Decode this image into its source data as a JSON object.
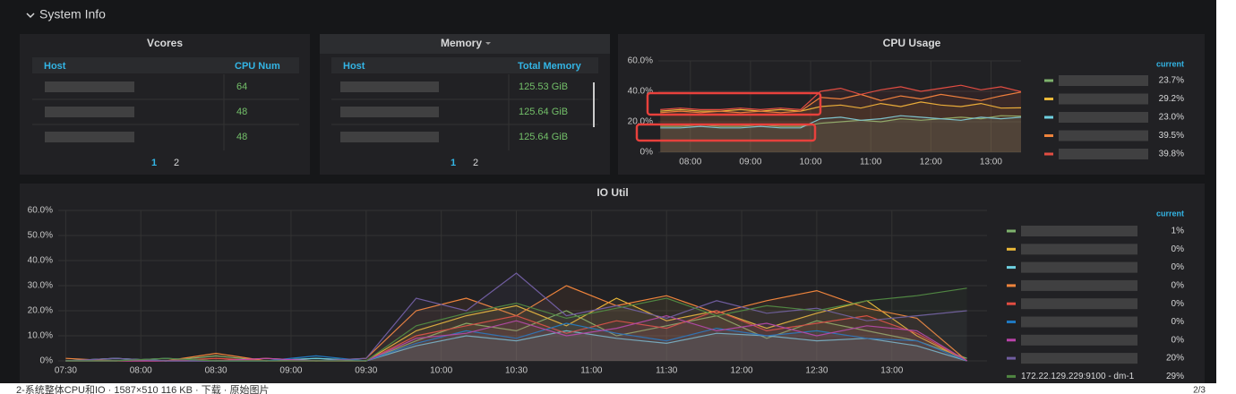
{
  "row_title": "System Info",
  "tables": [
    {
      "title": "Vcores",
      "columns": [
        "Host",
        "CPU Num"
      ],
      "values": [
        64,
        48,
        48
      ],
      "pages": [
        1,
        2
      ]
    },
    {
      "title": "Memory",
      "columns": [
        "Host",
        "Total Memory"
      ],
      "values": [
        "125.53 GiB",
        "125.64 GiB",
        "125.64 GiB"
      ],
      "pages": [
        1,
        2
      ]
    }
  ],
  "chart_data": [
    {
      "type": "line",
      "title": "CPU Usage",
      "legend_header": "current",
      "x": [
        "07:30",
        "07:50",
        "08:10",
        "08:30",
        "08:50",
        "09:10",
        "09:30",
        "09:50",
        "10:10",
        "10:30",
        "10:50",
        "11:10",
        "11:30",
        "11:50",
        "12:10",
        "12:30",
        "12:50",
        "13:10",
        "13:30"
      ],
      "xlim": [
        "07:28",
        "13:30"
      ],
      "xticks": [
        "08:00",
        "09:00",
        "10:00",
        "11:00",
        "12:00",
        "13:00"
      ],
      "ylim": [
        0,
        60
      ],
      "yticks": [
        {
          "value": 0,
          "label": "0%"
        },
        {
          "value": 20,
          "label": "20.0%"
        },
        {
          "value": 40,
          "label": "40.0%"
        },
        {
          "value": 60,
          "label": "60.0%"
        }
      ],
      "grid": true,
      "series": [
        {
          "color": "#7eb26d",
          "current": "23.7%",
          "values": [
            17,
            17,
            18,
            17,
            17,
            18,
            17,
            17,
            19,
            20,
            21,
            20,
            22,
            21,
            22,
            23,
            22,
            24,
            23.7
          ]
        },
        {
          "color": "#eab839",
          "current": "29.2%",
          "values": [
            27,
            28,
            27,
            27,
            28,
            27,
            28,
            27,
            30,
            31,
            29,
            32,
            30,
            33,
            31,
            30,
            32,
            29,
            29.2
          ]
        },
        {
          "color": "#6ed0e0",
          "current": "23.0%",
          "values": [
            16,
            16,
            17,
            16,
            16,
            17,
            16,
            16,
            22,
            23,
            21,
            22,
            24,
            23,
            22,
            21,
            23,
            22,
            23.0
          ]
        },
        {
          "color": "#ef843c",
          "current": "39.5%",
          "values": [
            26,
            27,
            26,
            27,
            26,
            27,
            26,
            27,
            36,
            35,
            38,
            34,
            37,
            35,
            38,
            36,
            34,
            37,
            39.5
          ]
        },
        {
          "color": "#e24d42",
          "current": "39.8%",
          "values": [
            28,
            29,
            28,
            28,
            29,
            28,
            29,
            28,
            40,
            42,
            38,
            41,
            43,
            40,
            42,
            44,
            41,
            43,
            39.8
          ]
        }
      ]
    },
    {
      "type": "line",
      "title": "IO Util",
      "legend_header": "current",
      "x": [
        "07:30",
        "07:50",
        "08:10",
        "08:30",
        "08:50",
        "09:10",
        "09:30",
        "09:50",
        "10:10",
        "10:30",
        "10:50",
        "11:10",
        "11:30",
        "11:50",
        "12:10",
        "12:30",
        "12:50",
        "13:10",
        "13:30"
      ],
      "xlim": [
        "07:27",
        "13:38"
      ],
      "xticks": [
        "07:30",
        "08:00",
        "08:30",
        "09:00",
        "09:30",
        "10:00",
        "10:30",
        "11:00",
        "11:30",
        "12:00",
        "12:30",
        "13:00"
      ],
      "ylim": [
        0,
        60
      ],
      "yticks": [
        {
          "value": 0,
          "label": "0%"
        },
        {
          "value": 10,
          "label": "10.0%"
        },
        {
          "value": 20,
          "label": "20.0%"
        },
        {
          "value": 30,
          "label": "30.0%"
        },
        {
          "value": 40,
          "label": "40.0%"
        },
        {
          "value": 50,
          "label": "50.0%"
        },
        {
          "value": 60,
          "label": "60.0%"
        }
      ],
      "grid": true,
      "series": [
        {
          "color": "#7eb26d",
          "current": "1%",
          "values": [
            0,
            1,
            0,
            2,
            0,
            1,
            0,
            8,
            15,
            12,
            20,
            10,
            14,
            18,
            9,
            16,
            12,
            8,
            1
          ]
        },
        {
          "color": "#eab839",
          "current": "0%",
          "values": [
            0,
            0,
            1,
            0,
            1,
            0,
            0,
            12,
            18,
            22,
            14,
            25,
            16,
            20,
            13,
            19,
            24,
            10,
            0
          ]
        },
        {
          "color": "#6ed0e0",
          "current": "0%",
          "values": [
            0,
            1,
            0,
            0,
            0,
            1,
            0,
            6,
            10,
            8,
            12,
            9,
            7,
            11,
            10,
            8,
            9,
            6,
            0
          ]
        },
        {
          "color": "#ef843c",
          "current": "0%",
          "values": [
            1,
            0,
            0,
            3,
            0,
            0,
            1,
            20,
            25,
            18,
            30,
            22,
            26,
            19,
            24,
            28,
            21,
            17,
            0
          ]
        },
        {
          "color": "#e24d42",
          "current": "0%",
          "values": [
            0,
            0,
            0,
            1,
            0,
            0,
            0,
            10,
            14,
            18,
            11,
            16,
            13,
            20,
            12,
            15,
            18,
            11,
            0
          ]
        },
        {
          "color": "#1f78c1",
          "current": "0%",
          "values": [
            0,
            0,
            1,
            0,
            0,
            2,
            0,
            7,
            12,
            9,
            15,
            11,
            8,
            13,
            10,
            12,
            9,
            8,
            0
          ]
        },
        {
          "color": "#ba43a9",
          "current": "0%",
          "values": [
            0,
            0,
            0,
            0,
            1,
            0,
            0,
            9,
            11,
            16,
            10,
            13,
            18,
            12,
            15,
            10,
            14,
            12,
            0
          ]
        },
        {
          "color": "#705da0",
          "current": "20%",
          "values": [
            0,
            1,
            0,
            0,
            0,
            0,
            1,
            25,
            20,
            35,
            18,
            22,
            17,
            24,
            19,
            21,
            16,
            18,
            20
          ]
        },
        {
          "color": "#508642",
          "name": "172.22.129.229:9100 - dm-1",
          "current": "29%",
          "values": [
            0,
            0,
            1,
            0,
            0,
            0,
            0,
            14,
            19,
            23,
            17,
            21,
            25,
            18,
            22,
            20,
            24,
            26,
            29
          ]
        }
      ]
    }
  ],
  "footer": {
    "caption": "2-系统整体CPU和IO · 1587×510 116 KB · 下载 · 原始图片",
    "page": "2/3"
  }
}
